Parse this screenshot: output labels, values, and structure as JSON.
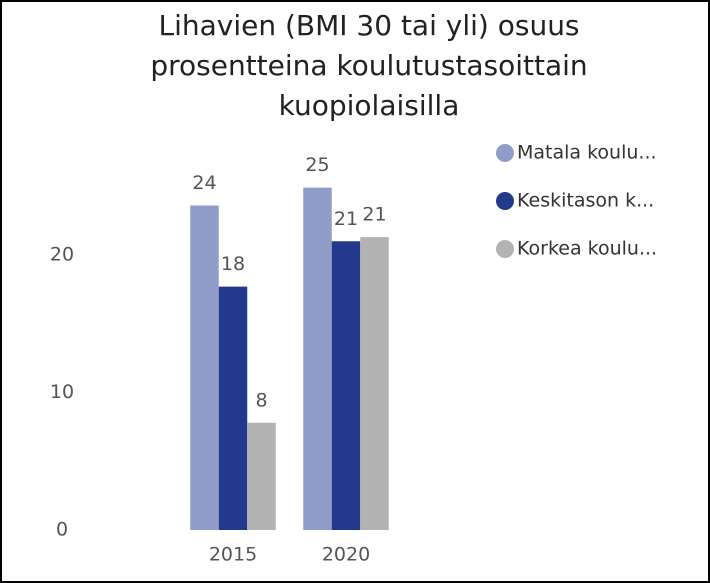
{
  "chart_data": {
    "type": "bar",
    "title": "Lihavien (BMI 30 tai yli) osuus prosentteina koulutustasoittain kuopiolaisilla",
    "categories": [
      "2015",
      "2020"
    ],
    "series": [
      {
        "name": "Matala koulu...",
        "color": "#8f9dc8",
        "values": [
          23.6,
          24.9
        ],
        "value_labels": [
          "24",
          "25"
        ]
      },
      {
        "name": "Keskitason k...",
        "color": "#233a8c",
        "values": [
          17.7,
          21.0
        ],
        "value_labels": [
          "18",
          "21"
        ]
      },
      {
        "name": "Korkea koulu...",
        "color": "#b3b3b3",
        "values": [
          7.8,
          21.3
        ],
        "value_labels": [
          "8",
          "21"
        ]
      }
    ],
    "ylim": [
      0,
      28
    ],
    "yticks": [
      0,
      10,
      20
    ],
    "grid": false,
    "legend": "right"
  }
}
